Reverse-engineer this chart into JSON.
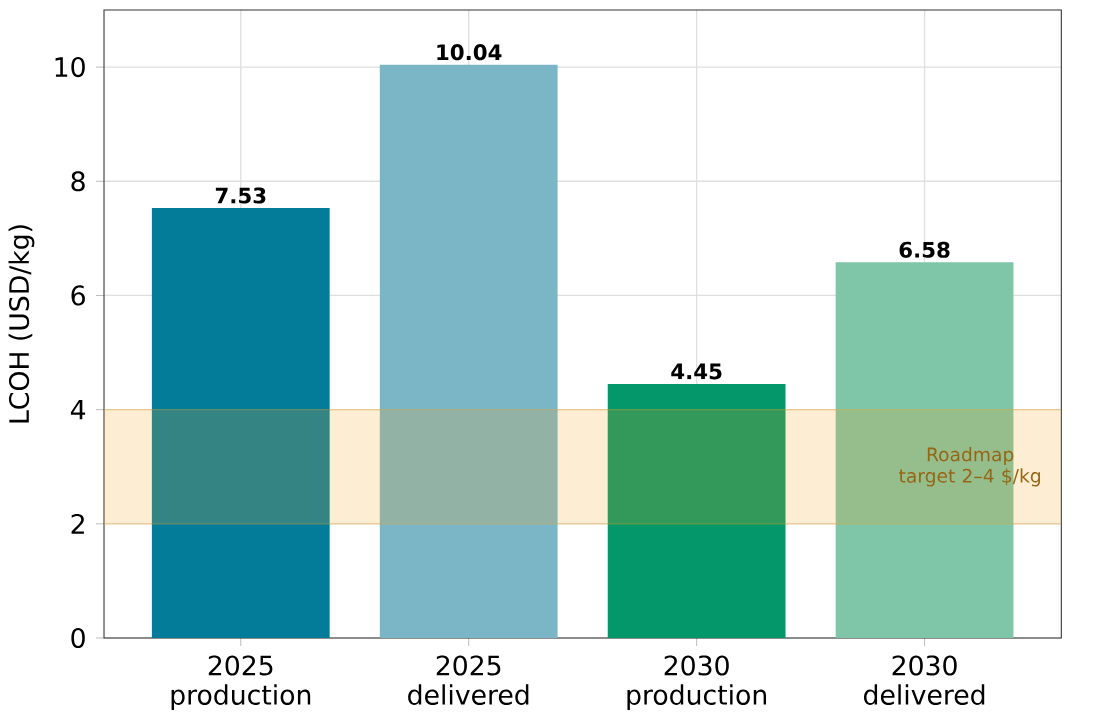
{
  "chart_data": {
    "type": "bar",
    "ylabel": "LCOH (USD/kg)",
    "categories": [
      "2025 production",
      "2025 delivered",
      "2030 production",
      "2030 delivered"
    ],
    "values": [
      7.53,
      10.04,
      4.45,
      6.58
    ],
    "colors": [
      "#037c9a",
      "#7ab6c6",
      "#03976a",
      "#7fc5a8"
    ],
    "ylim": [
      0,
      11
    ],
    "yticks": [
      0,
      2,
      4,
      6,
      8,
      10
    ],
    "grid": true,
    "data_labels": true,
    "bands": [
      {
        "axis": "y",
        "from": 2,
        "to": 4,
        "label": "Roadmap target 2–4 $/kg",
        "color": "#f5a623"
      }
    ]
  }
}
